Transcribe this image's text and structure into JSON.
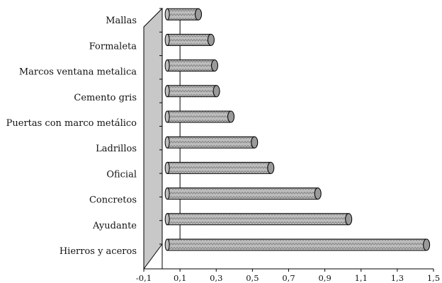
{
  "chart_data": {
    "type": "bar",
    "orientation": "horizontal",
    "style": "3d-cylinder",
    "categories": [
      "Hierros y aceros",
      "Ayudante",
      "Concretos",
      "Oficial",
      "Ladrillos",
      "Puertas con marco metálico",
      "Cemento gris",
      "Marcos ventana metalica",
      "Formaleta",
      "Mallas"
    ],
    "values": [
      1.43,
      1.0,
      0.83,
      0.57,
      0.48,
      0.35,
      0.27,
      0.26,
      0.24,
      0.17
    ],
    "xlim": [
      -0.1,
      1.5
    ],
    "xticks": [
      -0.1,
      0.1,
      0.3,
      0.5,
      0.7,
      0.9,
      1.1,
      1.3,
      1.5
    ],
    "xtick_labels": [
      "-0,1",
      "0,1",
      "0,3",
      "0,5",
      "0,7",
      "0,9",
      "1,1",
      "1,3",
      "1,5"
    ],
    "title": "",
    "xlabel": "",
    "ylabel": "",
    "grid": false,
    "legend": "none",
    "colors": {
      "bar_fill": "#b8b8b8",
      "bar_pattern": "#7a7a7a",
      "end_cap": "#9a9a9a",
      "wall": "#c8c8c8",
      "axis": "#000000"
    }
  }
}
